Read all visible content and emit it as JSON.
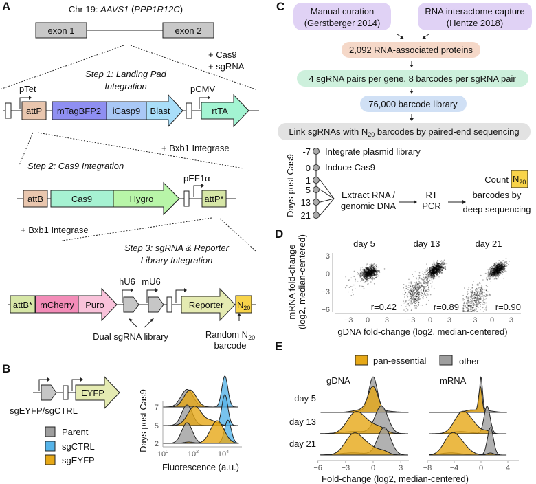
{
  "panelA": {
    "label": "A",
    "chr": "Chr 19: ",
    "locus": "AAVS1",
    "gene_open": " (",
    "gene": "PPP1R12C",
    "gene_close": ")",
    "exon1": "exon 1",
    "exon2": "exon 2",
    "cas9": "+ Cas9",
    "sgrna": "+ sgRNA",
    "step1a": "Step 1: Landing Pad",
    "step1b": "Integration",
    "ptet": "pTet",
    "attP": "attP",
    "mTagBFP2": "mTagBFP2",
    "iCasp9": "iCasp9",
    "blast": "Blast",
    "pcmv": "pCMV",
    "rtta": "rtTA",
    "bxb1a": "+ Bxb1 Integrase",
    "step2": "Step 2: Cas9 Integration",
    "attB": "attB",
    "cas9gene": "Cas9",
    "hygro": "Hygro",
    "pef1a": "pEF1α",
    "attPstar": "attP*",
    "bxb1b": "+ Bxb1 Integrase",
    "step3a": "Step 3: sgRNA & Reporter",
    "step3b": "Library Integration",
    "attBstar": "attB*",
    "mcherry": "mCherry",
    "puro": "Puro",
    "hu6": "hU6",
    "mu6": "mU6",
    "reporter": "Reporter",
    "n": "N",
    "n_sub": "20",
    "dual": "Dual sgRNA library",
    "random": "Random N",
    "random_sub": "20",
    "barcode": "barcode",
    "colors": {
      "attP": "#e9c6ae",
      "mTagBFP2": "#8f8ff2",
      "iCasp9": "#a9c8f6",
      "blast": "#a9def9",
      "rtta": "#a3f4d2",
      "cas9": "#a6f2d2",
      "hygro": "#b8f5a8",
      "attPstar": "#d6e6a6",
      "mcherry": "#f38cb8",
      "puro": "#f9c2da",
      "reporter": "#e5ebb2",
      "n20": "#f8d44a",
      "sgrna": "#c6c6c6"
    }
  },
  "panelB": {
    "label": "B",
    "eyfp": "EYFP",
    "construct": "sgEYFP/sgCTRL",
    "legend": [
      {
        "name": "Parent",
        "color": "#9e9e9e"
      },
      {
        "name": "sgCTRL",
        "color": "#56b4e9"
      },
      {
        "name": "sgEYFP",
        "color": "#e6a817"
      }
    ],
    "ylabel": "Days post Cas9",
    "xlabel": "Fluorescence (a.u.)",
    "yticks": [
      "7",
      "5",
      "2"
    ],
    "xticks": [
      {
        "base": "10",
        "exp": "0"
      },
      {
        "base": "10",
        "exp": "2"
      },
      {
        "base": "10",
        "exp": "4"
      }
    ]
  },
  "panelC": {
    "label": "C",
    "src1a": "Manual curation",
    "src1b": "(Gerstberger 2014)",
    "src2a": "RNA interactome capture",
    "src2b": "(Hentze 2018)",
    "proteins": "2,092 RNA-associated proteins",
    "pairs": "4 sgRNA pairs per gene, 8 barcodes per sgRNA pair",
    "library": "76,000 barcode library",
    "link_a": "Link sgRNAs with N",
    "link_sub": "20",
    "link_b": " barcodes by paired-end sequencing",
    "timeline_label": "Days post Cas9",
    "days": [
      "-7",
      "0",
      "1",
      "5",
      "13",
      "21"
    ],
    "integrate": "Integrate plasmid library",
    "induce": "Induce Cas9",
    "extract_a": "Extract RNA /",
    "extract_b": "genomic DNA",
    "rt": "RT",
    "pcr": "PCR",
    "count": "Count",
    "n": "N",
    "n_sub": "20",
    "barcodes_by": "barcodes by",
    "deep": "deep sequencing"
  },
  "chart_data": [
    {
      "panel": "D",
      "type": "scatter",
      "facets": [
        {
          "title": "day 5",
          "r": "r=0.42"
        },
        {
          "title": "day 13",
          "r": "r=0.89"
        },
        {
          "title": "day 21",
          "r": "r=0.90"
        }
      ],
      "xlabel": "gDNA fold-change (log2, median-centered)",
      "ylabel_a": "mRNA fold-change",
      "ylabel_b": "(log2, median-centered)",
      "xticks": [
        "−3",
        "0",
        "3"
      ],
      "yticks": [
        "3",
        "0",
        "−3",
        "−6"
      ],
      "xlim": [
        -4.5,
        4
      ],
      "ylim": [
        -6.5,
        3.5
      ]
    },
    {
      "panel": "E",
      "type": "area",
      "legend": [
        {
          "name": "pan-essential",
          "color": "#e6a817"
        },
        {
          "name": "other",
          "color": "#9e9e9e"
        }
      ],
      "facets": [
        {
          "title": "gDNA",
          "xticks": [
            "−6",
            "−3",
            "0",
            "3"
          ],
          "xlim": [
            -6,
            4
          ]
        },
        {
          "title": "mRNA",
          "xticks": [
            "−8",
            "−4",
            "0",
            "4"
          ],
          "xlim": [
            -8,
            4
          ]
        }
      ],
      "rows": [
        "day 5",
        "day 13",
        "day 21"
      ],
      "xlabel": "Fold-change (log2, median-centered)",
      "modes": {
        "gDNA": {
          "pan-essential": [
            0,
            -2,
            -2.2
          ],
          "other": [
            0,
            0.9,
            1.2
          ]
        },
        "mRNA": {
          "pan-essential": [
            -0.1,
            -3,
            -4.5
          ],
          "other": [
            0,
            0.9,
            1.4
          ]
        }
      }
    }
  ]
}
